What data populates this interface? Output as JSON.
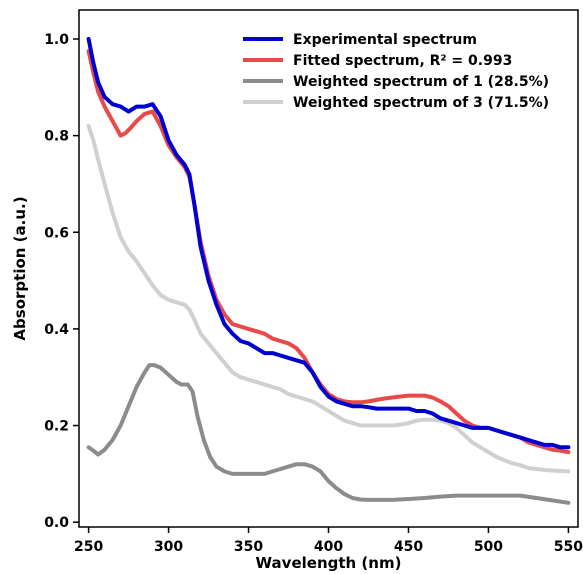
{
  "chart_data": {
    "type": "line",
    "xlabel": "Wavelength (nm)",
    "ylabel": "Absorption (a.u.)",
    "xlim": [
      244,
      556
    ],
    "ylim": [
      -0.01,
      1.06
    ],
    "xticks": [
      250,
      300,
      350,
      400,
      450,
      500,
      550
    ],
    "yticks": [
      0.0,
      0.2,
      0.4,
      0.6,
      0.8,
      1.0
    ],
    "xtick_labels": [
      "250",
      "300",
      "350",
      "400",
      "450",
      "500",
      "550"
    ],
    "ytick_labels": [
      "0.0",
      "0.2",
      "0.4",
      "0.6",
      "0.8",
      "1.0"
    ],
    "grid": false,
    "legend_position": "top-right",
    "series": [
      {
        "name": "Experimental spectrum",
        "color": "#0000d0",
        "x": [
          250,
          253,
          256,
          260,
          265,
          270,
          275,
          280,
          285,
          290,
          295,
          300,
          305,
          310,
          313,
          316,
          320,
          325,
          330,
          335,
          340,
          345,
          350,
          355,
          360,
          365,
          370,
          375,
          380,
          385,
          390,
          395,
          400,
          405,
          410,
          415,
          420,
          425,
          430,
          435,
          440,
          445,
          450,
          455,
          460,
          465,
          470,
          475,
          480,
          485,
          490,
          495,
          500,
          505,
          510,
          515,
          520,
          525,
          530,
          535,
          540,
          545,
          550
        ],
        "y": [
          1.0,
          0.95,
          0.91,
          0.88,
          0.865,
          0.86,
          0.85,
          0.86,
          0.86,
          0.865,
          0.84,
          0.79,
          0.76,
          0.74,
          0.72,
          0.66,
          0.57,
          0.5,
          0.45,
          0.41,
          0.39,
          0.375,
          0.37,
          0.36,
          0.35,
          0.35,
          0.345,
          0.34,
          0.335,
          0.33,
          0.31,
          0.28,
          0.26,
          0.25,
          0.245,
          0.24,
          0.24,
          0.238,
          0.235,
          0.235,
          0.235,
          0.235,
          0.235,
          0.23,
          0.23,
          0.225,
          0.215,
          0.21,
          0.205,
          0.2,
          0.195,
          0.195,
          0.195,
          0.19,
          0.185,
          0.18,
          0.175,
          0.17,
          0.165,
          0.16,
          0.16,
          0.155,
          0.155
        ]
      },
      {
        "name": "Fitted spectrum, R² = 0.993",
        "color": "#e84a4a",
        "x": [
          250,
          253,
          256,
          260,
          265,
          270,
          273,
          276,
          280,
          285,
          290,
          295,
          300,
          305,
          310,
          313,
          316,
          320,
          325,
          330,
          335,
          340,
          345,
          350,
          355,
          360,
          365,
          370,
          375,
          380,
          385,
          390,
          395,
          400,
          405,
          410,
          415,
          420,
          425,
          430,
          435,
          440,
          445,
          450,
          455,
          460,
          465,
          470,
          475,
          480,
          485,
          490,
          495,
          500,
          505,
          510,
          515,
          520,
          525,
          530,
          535,
          540,
          545,
          550
        ],
        "y": [
          0.975,
          0.93,
          0.89,
          0.86,
          0.83,
          0.8,
          0.805,
          0.815,
          0.83,
          0.845,
          0.85,
          0.82,
          0.78,
          0.755,
          0.735,
          0.715,
          0.66,
          0.58,
          0.51,
          0.46,
          0.43,
          0.41,
          0.405,
          0.4,
          0.395,
          0.39,
          0.38,
          0.375,
          0.37,
          0.36,
          0.34,
          0.31,
          0.285,
          0.265,
          0.255,
          0.25,
          0.248,
          0.248,
          0.25,
          0.253,
          0.256,
          0.258,
          0.26,
          0.262,
          0.262,
          0.262,
          0.258,
          0.25,
          0.24,
          0.225,
          0.21,
          0.2,
          0.195,
          0.195,
          0.19,
          0.185,
          0.18,
          0.175,
          0.165,
          0.16,
          0.155,
          0.15,
          0.148,
          0.145
        ]
      },
      {
        "name": "Weighted spectrum of 1 (28.5%)",
        "color": "#8c8c8c",
        "x": [
          250,
          253,
          256,
          260,
          265,
          270,
          275,
          280,
          285,
          288,
          291,
          295,
          300,
          305,
          308,
          312,
          315,
          318,
          322,
          326,
          330,
          335,
          340,
          345,
          350,
          355,
          360,
          365,
          370,
          375,
          380,
          385,
          390,
          395,
          400,
          405,
          410,
          415,
          420,
          425,
          430,
          440,
          450,
          460,
          470,
          480,
          490,
          500,
          510,
          520,
          530,
          540,
          550
        ],
        "y": [
          0.155,
          0.148,
          0.14,
          0.15,
          0.17,
          0.2,
          0.24,
          0.28,
          0.31,
          0.325,
          0.325,
          0.32,
          0.305,
          0.29,
          0.285,
          0.285,
          0.27,
          0.22,
          0.17,
          0.135,
          0.115,
          0.105,
          0.1,
          0.1,
          0.1,
          0.1,
          0.1,
          0.105,
          0.11,
          0.115,
          0.12,
          0.12,
          0.115,
          0.105,
          0.085,
          0.07,
          0.058,
          0.05,
          0.047,
          0.046,
          0.046,
          0.046,
          0.048,
          0.05,
          0.053,
          0.055,
          0.055,
          0.055,
          0.055,
          0.055,
          0.05,
          0.045,
          0.04
        ]
      },
      {
        "name": "Weighted spectrum of 3 (71.5%)",
        "color": "#d0d0d0",
        "x": [
          250,
          253,
          256,
          260,
          265,
          270,
          275,
          280,
          285,
          290,
          295,
          300,
          305,
          310,
          313,
          316,
          320,
          325,
          330,
          335,
          340,
          345,
          350,
          355,
          360,
          365,
          370,
          375,
          380,
          385,
          390,
          395,
          400,
          405,
          410,
          415,
          420,
          425,
          430,
          435,
          440,
          445,
          450,
          455,
          460,
          465,
          470,
          475,
          480,
          485,
          490,
          495,
          500,
          505,
          510,
          515,
          520,
          525,
          530,
          535,
          540,
          545,
          550
        ],
        "y": [
          0.82,
          0.79,
          0.75,
          0.7,
          0.64,
          0.59,
          0.56,
          0.54,
          0.515,
          0.49,
          0.47,
          0.46,
          0.455,
          0.45,
          0.44,
          0.42,
          0.39,
          0.37,
          0.35,
          0.33,
          0.31,
          0.3,
          0.295,
          0.29,
          0.285,
          0.28,
          0.275,
          0.265,
          0.26,
          0.255,
          0.25,
          0.24,
          0.23,
          0.22,
          0.21,
          0.205,
          0.2,
          0.2,
          0.2,
          0.2,
          0.2,
          0.202,
          0.205,
          0.21,
          0.212,
          0.212,
          0.21,
          0.205,
          0.195,
          0.18,
          0.165,
          0.155,
          0.145,
          0.135,
          0.128,
          0.122,
          0.118,
          0.112,
          0.11,
          0.108,
          0.107,
          0.106,
          0.105
        ]
      }
    ]
  }
}
